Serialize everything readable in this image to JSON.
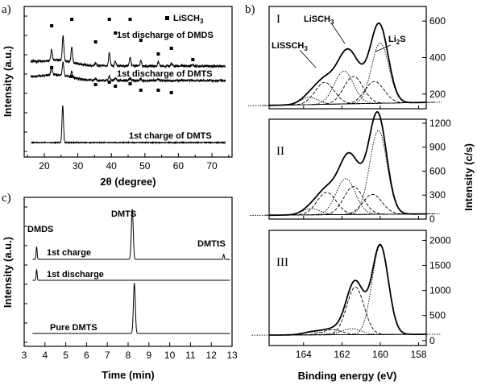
{
  "chart_data": [
    {
      "type": "line",
      "panel_label": "a)",
      "xlabel": "2θ (degree)",
      "ylabel": "Intensity (a.u.)",
      "xlim": [
        14,
        76
      ],
      "xticks": [
        "20",
        "30",
        "40",
        "50",
        "60",
        "70"
      ],
      "legend": {
        "marker": "square",
        "label": "LiSCH3",
        "label_main": "LiSCH",
        "label_sub": "3",
        "placement": "top-right"
      },
      "series": [
        {
          "name": "1st discharge of DMDS",
          "offset": 2.0,
          "peaks": [
            [
              22.2,
              0.9
            ],
            [
              25.6,
              2.2
            ],
            [
              28.2,
              1.4
            ],
            [
              35.3,
              0.25
            ],
            [
              39.4,
              1.2
            ],
            [
              41.2,
              0.45
            ],
            [
              45.6,
              0.8
            ],
            [
              48.8,
              0.45
            ],
            [
              54.0,
              0.35
            ],
            [
              57.9,
              0.2
            ],
            [
              64.3,
              0.15
            ]
          ],
          "markers": [
            22.2,
            28.2,
            35.3,
            39.4,
            41.2,
            45.6,
            48.8,
            54.0,
            57.9,
            64.3
          ]
        },
        {
          "name": "1st discharge of DMTS",
          "offset": 1.2,
          "peaks": [
            [
              22.2,
              0.8
            ],
            [
              25.6,
              1.3
            ],
            [
              28.2,
              0.55
            ],
            [
              35.3,
              0.15
            ],
            [
              39.4,
              0.45
            ],
            [
              41.2,
              0.2
            ],
            [
              45.6,
              0.25
            ],
            [
              48.8,
              0.2
            ],
            [
              54.0,
              0.15
            ]
          ],
          "markers": [
            22.2,
            28.2,
            35.3,
            39.4,
            41.2,
            45.6,
            48.8,
            54.0,
            57.9
          ]
        },
        {
          "name": "1st charge of DMTS",
          "offset": 0.0,
          "peaks": [
            [
              25.5,
              2.0
            ]
          ]
        }
      ]
    },
    {
      "type": "line",
      "panel_label": "c)",
      "xlabel": "Time (min)",
      "ylabel": "Intensity (a.u.)",
      "xlim": [
        3,
        13
      ],
      "xticks": [
        "3",
        "4",
        "5",
        "6",
        "7",
        "8",
        "9",
        "10",
        "11",
        "12",
        "13"
      ],
      "annotations": [
        "DMDS",
        "DMTS",
        "DMTtS"
      ],
      "series": [
        {
          "name": "1st charge",
          "offset": 2.0,
          "peaks": [
            [
              3.6,
              0.3
            ],
            [
              8.2,
              1.2
            ],
            [
              12.6,
              0.12
            ]
          ]
        },
        {
          "name": "1st discharge",
          "offset": 1.1,
          "peaks": [
            [
              3.6,
              0.25
            ]
          ]
        },
        {
          "name": "Pure DMTS",
          "offset": 0.0,
          "peaks": [
            [
              8.3,
              1.2
            ]
          ]
        }
      ]
    },
    {
      "type": "line",
      "panel_label": "b)",
      "xlabel": "Binding energy (eV)",
      "ylabel": "Intensity (c/s)",
      "xlim": [
        165.8,
        157.6
      ],
      "xticks": [
        "164",
        "162",
        "160",
        "158"
      ],
      "panels": [
        {
          "label": "I",
          "ylim": [
            120,
            680
          ],
          "yticks": [
            "200",
            "400",
            "600"
          ],
          "baseline": 150,
          "annotations": [
            {
              "text": "LiSSCH",
              "sub": "3"
            },
            {
              "text": "LiSCH",
              "sub": "3"
            },
            {
              "text": "Li",
              "sub": "2",
              "after": "S"
            }
          ],
          "components": [
            {
              "center": 163.7,
              "height": 40,
              "width": 0.9
            },
            {
              "center": 162.9,
              "height": 120,
              "width": 1.0
            },
            {
              "center": 161.9,
              "height": 180,
              "width": 1.0
            },
            {
              "center": 161.4,
              "height": 150,
              "width": 1.0
            },
            {
              "center": 160.0,
              "height": 330,
              "width": 0.9
            },
            {
              "center": 160.3,
              "height": 120,
              "width": 1.0
            }
          ]
        },
        {
          "label": "II",
          "ylim": [
            0,
            1250
          ],
          "yticks": [
            "0",
            "300",
            "600",
            "900",
            "1200"
          ],
          "baseline": 60,
          "components": [
            {
              "center": 163.6,
              "height": 80,
              "width": 0.9
            },
            {
              "center": 162.8,
              "height": 280,
              "width": 1.0
            },
            {
              "center": 161.8,
              "height": 450,
              "width": 1.0
            },
            {
              "center": 161.4,
              "height": 350,
              "width": 1.0
            },
            {
              "center": 160.1,
              "height": 1050,
              "width": 0.9
            },
            {
              "center": 160.4,
              "height": 250,
              "width": 1.0
            }
          ]
        },
        {
          "label": "III",
          "ylim": [
            -100,
            2200
          ],
          "yticks": [
            "0",
            "500",
            "1000",
            "1500",
            "2000"
          ],
          "baseline": 120,
          "components": [
            {
              "center": 163.5,
              "height": 60,
              "width": 1.0
            },
            {
              "center": 162.5,
              "height": 100,
              "width": 1.0
            },
            {
              "center": 161.5,
              "height": 120,
              "width": 1.0
            },
            {
              "center": 161.3,
              "height": 950,
              "width": 0.9
            },
            {
              "center": 160.0,
              "height": 1780,
              "width": 0.85
            }
          ]
        }
      ]
    }
  ]
}
